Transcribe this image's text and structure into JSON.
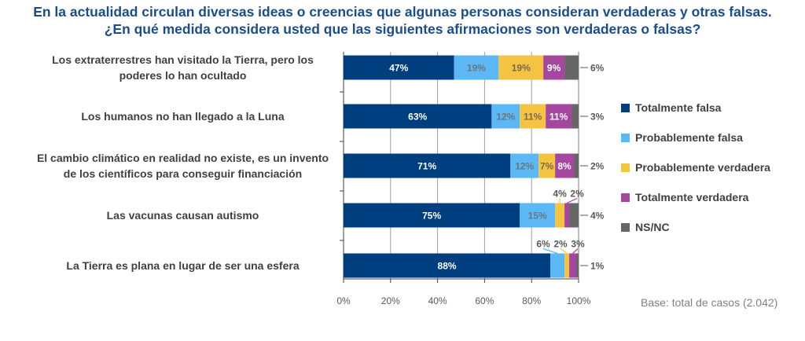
{
  "title_line1": "En la actualidad circulan diversas ideas o creencias  que algunas personas consideran verdaderas y otras falsas.",
  "title_line2": "¿En qué medida considera usted que las siguientes afirmaciones son verdaderas o falsas?",
  "base_note": "Base: total de casos (2.042)",
  "chart_data": {
    "type": "bar",
    "orientation": "horizontal",
    "stacked": true,
    "categories": [
      "Los extraterrestres han visitado la Tierra, pero los poderes lo han ocultado",
      "Los humanos no han llegado a la Luna",
      "El cambio climático en realidad no existe, es un invento de los científicos para conseguir financiación",
      "Las vacunas causan autismo",
      "La Tierra es plana en lugar de ser una esfera"
    ],
    "series": [
      {
        "name": "Totalmente falsa",
        "color": "#003f7f",
        "label_color": "#ffffff",
        "values": [
          47,
          63,
          71,
          75,
          88
        ]
      },
      {
        "name": "Probablemente falsa",
        "color": "#5bb8f5",
        "label_color": "#6b7680",
        "values": [
          19,
          12,
          12,
          15,
          6
        ]
      },
      {
        "name": "Probablemente verdadera",
        "color": "#f5c342",
        "label_color": "#7a6a50",
        "values": [
          19,
          11,
          7,
          4,
          2
        ]
      },
      {
        "name": "Totalmente verdadera",
        "color": "#a5479e",
        "label_color": "#ffffff",
        "values": [
          9,
          11,
          8,
          2,
          3
        ]
      },
      {
        "name": "NS/NC",
        "color": "#666666",
        "label_color": "#595959",
        "values": [
          6,
          3,
          2,
          4,
          1
        ]
      }
    ],
    "xlim": [
      0,
      100
    ],
    "xticks": [
      "0%",
      "20%",
      "40%",
      "60%",
      "80%",
      "100%"
    ],
    "grid": true,
    "legend": "right"
  }
}
